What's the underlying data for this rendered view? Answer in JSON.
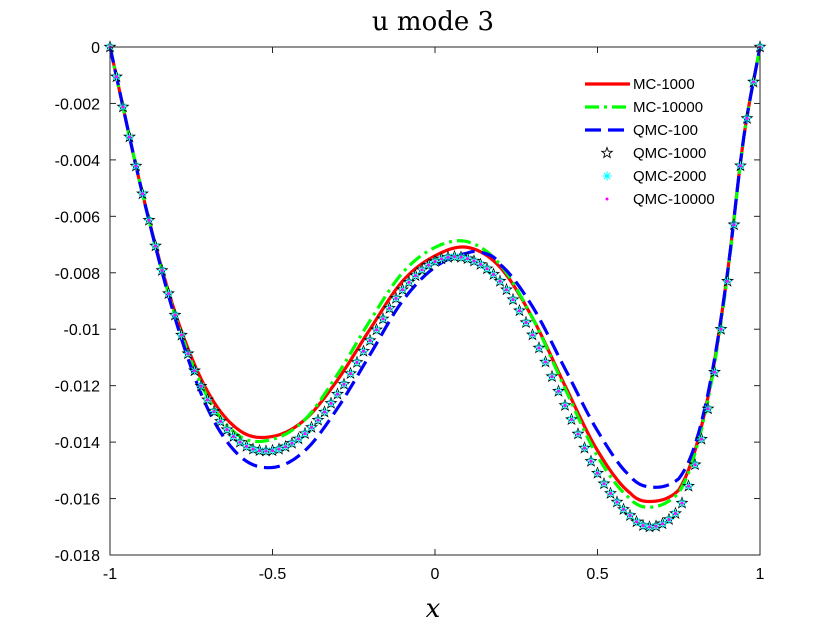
{
  "chart_data": {
    "type": "line",
    "title": "u mode 3",
    "xlabel": "x",
    "ylabel": "",
    "xlim": [
      -1,
      1
    ],
    "ylim": [
      -0.018,
      0
    ],
    "xticks": [
      -1,
      -0.5,
      0,
      0.5,
      1
    ],
    "xtick_labels": [
      "-1",
      "-0.5",
      "0",
      "0.5",
      "1"
    ],
    "yticks": [
      0,
      -0.002,
      -0.004,
      -0.006,
      -0.008,
      -0.01,
      -0.012,
      -0.014,
      -0.016,
      -0.018
    ],
    "ytick_labels": [
      "0",
      "-0.002",
      "-0.004",
      "-0.006",
      "-0.008",
      "-0.01",
      "-0.012",
      "-0.014",
      "-0.016",
      "-0.018"
    ],
    "legend_position": "top-right",
    "series": [
      {
        "name": "MC-1000",
        "color": "#ff0000",
        "style": "solid",
        "marker": "none",
        "x": [
          -1,
          -0.9,
          -0.8,
          -0.7,
          -0.6,
          -0.5,
          -0.4,
          -0.3,
          -0.2,
          -0.1,
          0,
          0.1,
          0.2,
          0.3,
          0.4,
          0.5,
          0.6,
          0.67,
          0.75,
          0.8,
          0.85,
          0.9,
          0.95,
          1
        ],
        "y": [
          0,
          -0.0052,
          -0.0094,
          -0.0122,
          -0.0136,
          -0.0138,
          -0.0132,
          -0.0118,
          -0.01,
          -0.0083,
          -0.0074,
          -0.0071,
          -0.0078,
          -0.0096,
          -0.012,
          -0.0143,
          -0.0158,
          -0.0161,
          -0.0157,
          -0.0143,
          -0.0118,
          -0.008,
          -0.0032,
          0
        ]
      },
      {
        "name": "MC-10000",
        "color": "#00ff00",
        "style": "dashdot",
        "marker": "none",
        "x": [
          -1,
          -0.9,
          -0.8,
          -0.7,
          -0.6,
          -0.5,
          -0.4,
          -0.3,
          -0.2,
          -0.1,
          0,
          0.1,
          0.2,
          0.3,
          0.4,
          0.5,
          0.6,
          0.67,
          0.75,
          0.8,
          0.85,
          0.9,
          0.95,
          1
        ],
        "y": [
          0,
          -0.0052,
          -0.0095,
          -0.0124,
          -0.0138,
          -0.0139,
          -0.0132,
          -0.0116,
          -0.0097,
          -0.008,
          -0.0071,
          -0.0069,
          -0.0077,
          -0.0096,
          -0.0121,
          -0.0145,
          -0.016,
          -0.0163,
          -0.0158,
          -0.0144,
          -0.0119,
          -0.0081,
          -0.0032,
          0
        ]
      },
      {
        "name": "QMC-100",
        "color": "#0000ff",
        "style": "dashed",
        "marker": "none",
        "x": [
          -1,
          -0.9,
          -0.8,
          -0.7,
          -0.6,
          -0.5,
          -0.4,
          -0.3,
          -0.2,
          -0.1,
          0,
          0.1,
          0.15,
          0.2,
          0.3,
          0.4,
          0.5,
          0.6,
          0.67,
          0.75,
          0.8,
          0.85,
          0.9,
          0.95,
          1
        ],
        "y": [
          0,
          -0.0052,
          -0.0096,
          -0.0128,
          -0.0145,
          -0.0149,
          -0.0143,
          -0.0128,
          -0.0109,
          -0.009,
          -0.0078,
          -0.0073,
          -0.0073,
          -0.0077,
          -0.0092,
          -0.0114,
          -0.0136,
          -0.0152,
          -0.0156,
          -0.0153,
          -0.0141,
          -0.0117,
          -0.008,
          -0.0032,
          0
        ]
      },
      {
        "name": "QMC-1000",
        "color": "#000000",
        "style": "none",
        "marker": "star",
        "x": [
          -1,
          -0.9,
          -0.8,
          -0.7,
          -0.6,
          -0.5,
          -0.4,
          -0.3,
          -0.2,
          -0.1,
          0,
          0.1,
          0.2,
          0.3,
          0.4,
          0.5,
          0.6,
          0.67,
          0.75,
          0.8,
          0.85,
          0.9,
          0.95,
          1
        ],
        "y": [
          0,
          -0.0052,
          -0.0095,
          -0.0125,
          -0.014,
          -0.0143,
          -0.0137,
          -0.0123,
          -0.0104,
          -0.0086,
          -0.0076,
          -0.0075,
          -0.0083,
          -0.0102,
          -0.0127,
          -0.0151,
          -0.0166,
          -0.017,
          -0.0164,
          -0.0148,
          -0.0122,
          -0.0083,
          -0.0033,
          0
        ]
      },
      {
        "name": "QMC-2000",
        "color": "#00ffff",
        "style": "none",
        "marker": "asterisk",
        "x": [
          -1,
          -0.9,
          -0.8,
          -0.7,
          -0.6,
          -0.5,
          -0.4,
          -0.3,
          -0.2,
          -0.1,
          0,
          0.1,
          0.2,
          0.3,
          0.4,
          0.5,
          0.6,
          0.67,
          0.75,
          0.8,
          0.85,
          0.9,
          0.95,
          1
        ],
        "y": [
          0,
          -0.0052,
          -0.0095,
          -0.0125,
          -0.014,
          -0.0143,
          -0.0137,
          -0.0123,
          -0.0104,
          -0.0086,
          -0.0076,
          -0.0075,
          -0.0083,
          -0.0102,
          -0.0127,
          -0.0151,
          -0.0166,
          -0.017,
          -0.0164,
          -0.0148,
          -0.0122,
          -0.0083,
          -0.0033,
          0
        ]
      },
      {
        "name": "QMC-10000",
        "color": "#ff00ff",
        "style": "none",
        "marker": "point",
        "x": [
          -1,
          -0.9,
          -0.8,
          -0.7,
          -0.6,
          -0.5,
          -0.4,
          -0.3,
          -0.2,
          -0.1,
          0,
          0.1,
          0.2,
          0.3,
          0.4,
          0.5,
          0.6,
          0.67,
          0.75,
          0.8,
          0.85,
          0.9,
          0.95,
          1
        ],
        "y": [
          0,
          -0.0052,
          -0.0095,
          -0.0125,
          -0.014,
          -0.0143,
          -0.0137,
          -0.0123,
          -0.0104,
          -0.0086,
          -0.0076,
          -0.0075,
          -0.0083,
          -0.0102,
          -0.0127,
          -0.0151,
          -0.0166,
          -0.017,
          -0.0164,
          -0.0148,
          -0.0122,
          -0.0083,
          -0.0033,
          0
        ]
      }
    ]
  }
}
